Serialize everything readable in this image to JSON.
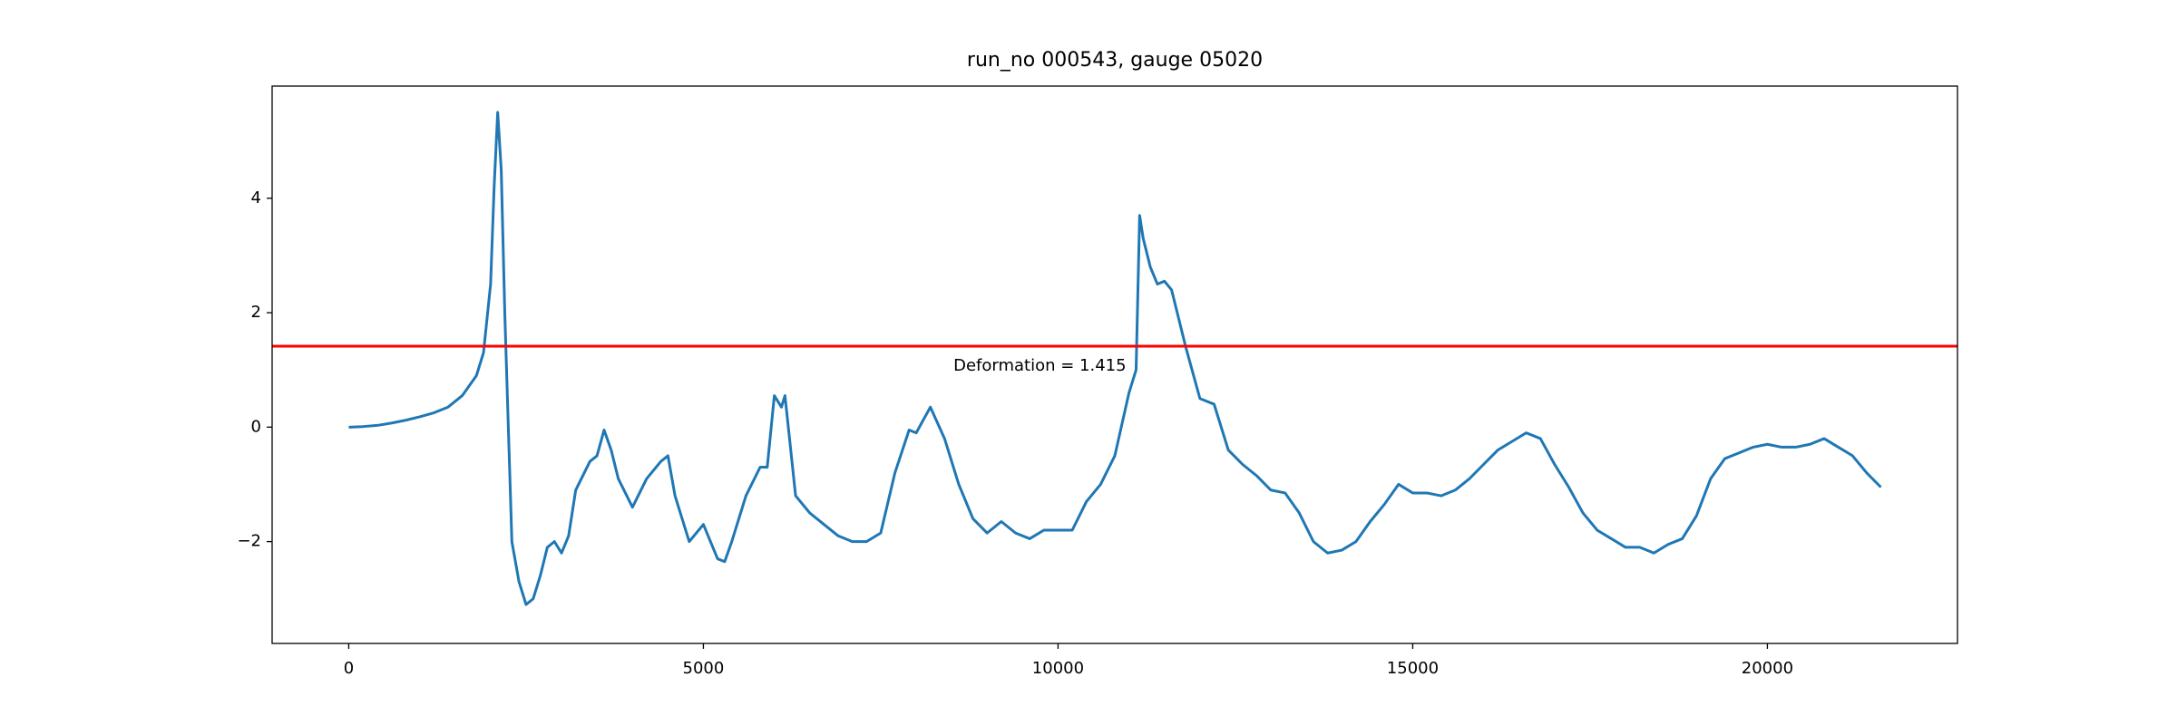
{
  "chart_data": {
    "type": "line",
    "title": "run_no 000543, gauge 05020",
    "x": [
      0,
      200,
      400,
      600,
      800,
      1000,
      1200,
      1400,
      1600,
      1800,
      1900,
      2000,
      2050,
      2100,
      2150,
      2200,
      2300,
      2400,
      2500,
      2600,
      2700,
      2800,
      2900,
      3000,
      3100,
      3200,
      3400,
      3500,
      3600,
      3700,
      3800,
      4000,
      4200,
      4400,
      4500,
      4600,
      4800,
      5000,
      5200,
      5300,
      5400,
      5600,
      5800,
      5900,
      6000,
      6100,
      6150,
      6300,
      6500,
      6700,
      6900,
      7100,
      7300,
      7500,
      7700,
      7900,
      8000,
      8200,
      8400,
      8600,
      8800,
      9000,
      9200,
      9400,
      9600,
      9800,
      10000,
      10200,
      10400,
      10600,
      10800,
      11000,
      11100,
      11150,
      11200,
      11300,
      11400,
      11500,
      11600,
      11800,
      12000,
      12200,
      12400,
      12600,
      12800,
      13000,
      13200,
      13400,
      13600,
      13800,
      14000,
      14200,
      14400,
      14600,
      14800,
      15000,
      15200,
      15400,
      15600,
      15800,
      16000,
      16200,
      16400,
      16600,
      16800,
      17000,
      17200,
      17400,
      17600,
      17800,
      18000,
      18200,
      18400,
      18600,
      18800,
      19000,
      19200,
      19400,
      19600,
      19800,
      20000,
      20200,
      20400,
      20600,
      20800,
      21000,
      21200,
      21400,
      21600
    ],
    "series": [
      {
        "color": "#1f77b4",
        "values": [
          0,
          0.01,
          0.03,
          0.07,
          0.12,
          0.18,
          0.25,
          0.35,
          0.55,
          0.9,
          1.3,
          2.5,
          4.2,
          5.5,
          4.5,
          2.0,
          -2.0,
          -2.7,
          -3.1,
          -3.0,
          -2.6,
          -2.1,
          -2.0,
          -2.2,
          -1.9,
          -1.1,
          -0.6,
          -0.5,
          -0.05,
          -0.4,
          -0.9,
          -1.4,
          -0.9,
          -0.6,
          -0.5,
          -1.2,
          -2.0,
          -1.7,
          -2.3,
          -2.35,
          -2.0,
          -1.2,
          -0.7,
          -0.7,
          0.55,
          0.35,
          0.55,
          -1.2,
          -1.5,
          -1.7,
          -1.9,
          -2.0,
          -2.0,
          -1.85,
          -0.8,
          -0.05,
          -0.1,
          0.35,
          -0.2,
          -1.0,
          -1.6,
          -1.85,
          -1.65,
          -1.85,
          -1.95,
          -1.8,
          -1.8,
          -1.8,
          -1.3,
          -1.0,
          -0.5,
          0.6,
          1.0,
          3.7,
          3.3,
          2.8,
          2.5,
          2.55,
          2.4,
          1.4,
          0.5,
          0.4,
          -0.4,
          -0.65,
          -0.85,
          -1.1,
          -1.15,
          -1.5,
          -2.0,
          -2.2,
          -2.15,
          -2.0,
          -1.65,
          -1.35,
          -1.0,
          -1.15,
          -1.15,
          -1.2,
          -1.1,
          -0.9,
          -0.65,
          -0.4,
          -0.25,
          -0.1,
          -0.2,
          -0.65,
          -1.05,
          -1.5,
          -1.8,
          -1.95,
          -2.1,
          -2.1,
          -2.2,
          -2.05,
          -1.95,
          -1.55,
          -0.9,
          -0.55,
          -0.45,
          -0.35,
          -0.3,
          -0.35,
          -0.35,
          -0.3,
          -0.2,
          -0.35,
          -0.5,
          -0.8,
          -1.05
        ]
      }
    ],
    "threshold": {
      "value": 1.415,
      "label": "Deformation = 1.415",
      "color": "#ff0000"
    },
    "xlim": [
      -1080,
      22680
    ],
    "xticks": [
      0,
      5000,
      10000,
      15000,
      20000
    ],
    "ylim": [
      -3.78,
      5.96
    ],
    "yticks": [
      {
        "value": -2,
        "label": "−2"
      },
      0,
      2,
      4
    ]
  }
}
